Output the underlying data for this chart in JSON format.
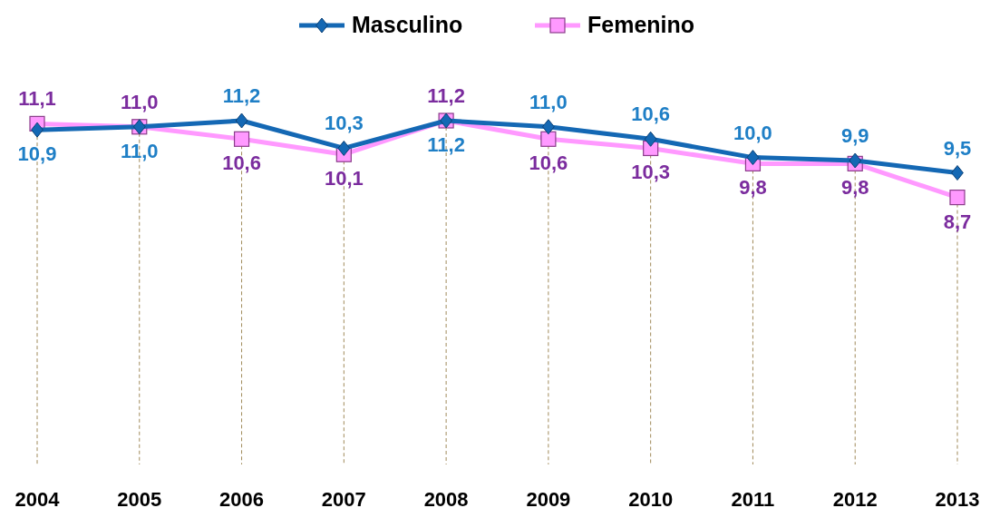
{
  "chart_data": {
    "type": "line",
    "categories": [
      "2004",
      "2005",
      "2006",
      "2007",
      "2008",
      "2009",
      "2010",
      "2011",
      "2012",
      "2013"
    ],
    "series": [
      {
        "name": "Masculino",
        "color": "#1468b4",
        "marker": "diamond",
        "values": [
          10.9,
          11.0,
          11.2,
          10.3,
          11.2,
          11.0,
          10.6,
          10.0,
          9.9,
          9.5
        ],
        "value_labels": [
          "10,9",
          "11,0",
          "11,2",
          "10,3",
          "11,2",
          "11,0",
          "10,6",
          "10,0",
          "9,9",
          "9,5"
        ]
      },
      {
        "name": "Femenino",
        "color": "#ff99ff",
        "marker": "square",
        "values": [
          11.1,
          11.0,
          10.6,
          10.1,
          11.2,
          10.6,
          10.3,
          9.8,
          9.8,
          8.7
        ],
        "value_labels": [
          "11,1",
          "11,0",
          "10,6",
          "10,1",
          "11,2",
          "10,6",
          "10,3",
          "9,8",
          "9,8",
          "8,7"
        ]
      }
    ],
    "legend": "top",
    "grid": "x",
    "tick_labels": "x"
  }
}
